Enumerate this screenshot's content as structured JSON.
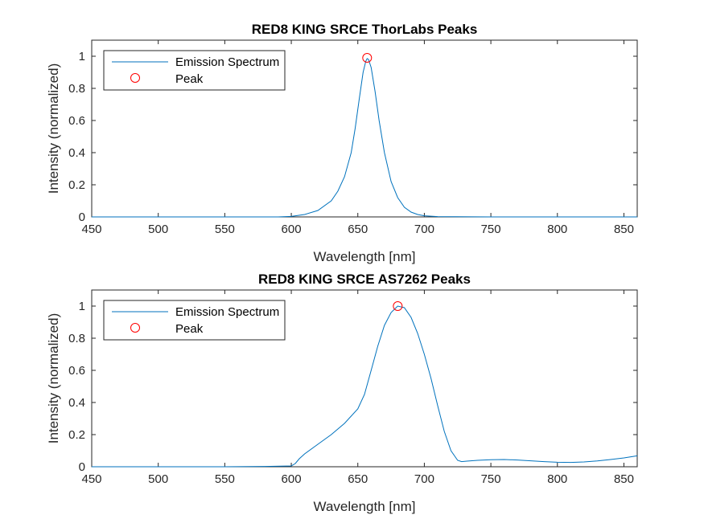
{
  "colors": {
    "series": "#0072BD",
    "peak": "#FF0000",
    "axis": "#262626",
    "background": "#FFFFFF"
  },
  "chart_data": [
    {
      "type": "line",
      "title": "RED8 KING SRCE ThorLabs Peaks",
      "xlabel": "Wavelength [nm]",
      "ylabel": "Intensity (normalized)",
      "xlim": [
        450,
        860
      ],
      "ylim": [
        0,
        1.1
      ],
      "xticks": [
        "450",
        "500",
        "550",
        "600",
        "650",
        "700",
        "750",
        "800",
        "850"
      ],
      "yticks": [
        "0",
        "0.2",
        "0.4",
        "0.6",
        "0.8",
        "1"
      ],
      "grid": false,
      "legend": {
        "position": "top-left",
        "entries": [
          "Emission Spectrum",
          "Peak"
        ]
      },
      "series": [
        {
          "name": "Emission Spectrum",
          "x": [
            450,
            500,
            550,
            590,
            600,
            610,
            620,
            630,
            635,
            640,
            645,
            648,
            651,
            654,
            656,
            657,
            658,
            660,
            663,
            666,
            670,
            675,
            680,
            685,
            690,
            695,
            700,
            710,
            750,
            800,
            860
          ],
          "y": [
            0.0,
            0.0,
            0.0,
            0.0,
            0.003,
            0.015,
            0.04,
            0.1,
            0.16,
            0.25,
            0.4,
            0.55,
            0.73,
            0.9,
            0.97,
            0.985,
            0.98,
            0.93,
            0.78,
            0.6,
            0.4,
            0.22,
            0.12,
            0.06,
            0.03,
            0.015,
            0.007,
            0.002,
            0.0,
            0.0,
            0.0
          ]
        },
        {
          "name": "Peak",
          "x": [
            657
          ],
          "y": [
            0.99
          ]
        }
      ]
    },
    {
      "type": "line",
      "title": "RED8 KING SRCE AS7262 Peaks",
      "xlabel": "Wavelength [nm]",
      "ylabel": "Intensity (normalized)",
      "xlim": [
        450,
        860
      ],
      "ylim": [
        0,
        1.1
      ],
      "xticks": [
        "450",
        "500",
        "550",
        "600",
        "650",
        "700",
        "750",
        "800",
        "850"
      ],
      "yticks": [
        "0",
        "0.2",
        "0.4",
        "0.6",
        "0.8",
        "1"
      ],
      "grid": false,
      "legend": {
        "position": "top-left",
        "entries": [
          "Emission Spectrum",
          "Peak"
        ]
      },
      "series": [
        {
          "name": "Emission Spectrum",
          "x": [
            450,
            500,
            550,
            580,
            600,
            603,
            606,
            610,
            620,
            630,
            640,
            650,
            655,
            660,
            665,
            670,
            675,
            680,
            685,
            690,
            695,
            700,
            705,
            710,
            715,
            720,
            725,
            728,
            732,
            740,
            750,
            760,
            770,
            780,
            790,
            800,
            810,
            820,
            830,
            840,
            850,
            860
          ],
          "y": [
            0.0,
            0.0,
            0.0,
            0.002,
            0.005,
            0.02,
            0.05,
            0.08,
            0.14,
            0.2,
            0.27,
            0.36,
            0.45,
            0.6,
            0.75,
            0.88,
            0.96,
            1.0,
            0.99,
            0.93,
            0.83,
            0.7,
            0.55,
            0.38,
            0.22,
            0.1,
            0.04,
            0.032,
            0.035,
            0.04,
            0.044,
            0.045,
            0.042,
            0.037,
            0.032,
            0.028,
            0.027,
            0.03,
            0.036,
            0.045,
            0.055,
            0.068
          ]
        },
        {
          "name": "Peak",
          "x": [
            680
          ],
          "y": [
            1.0
          ]
        }
      ]
    }
  ]
}
